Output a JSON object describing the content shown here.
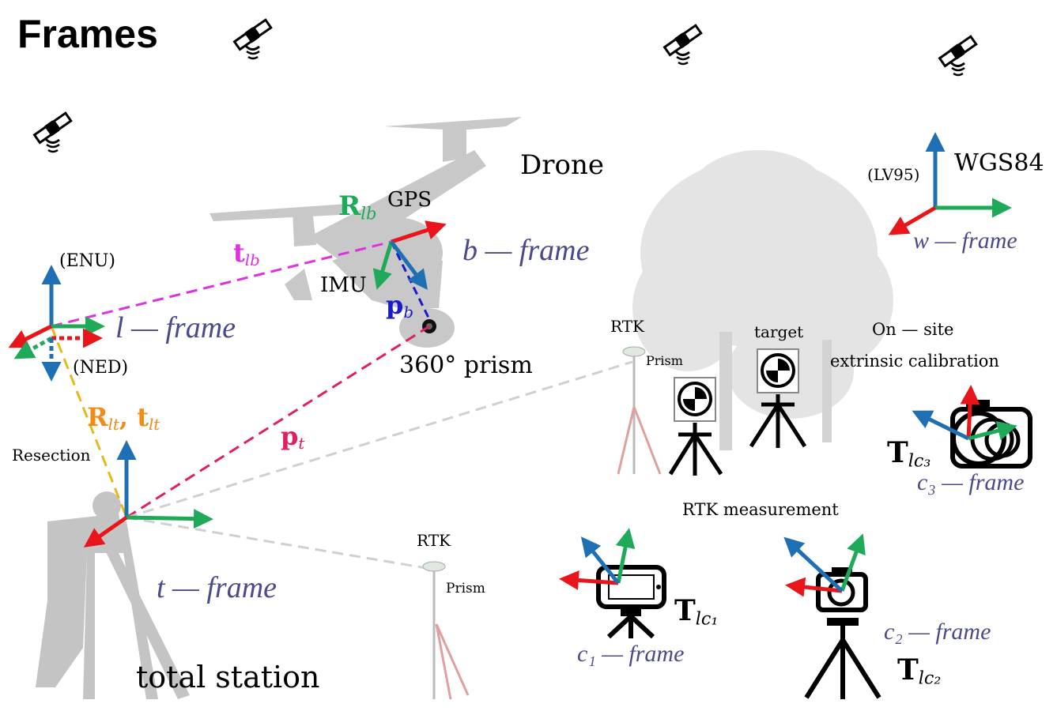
{
  "title": "Frames",
  "colors": {
    "axis_red": "#e8161a",
    "axis_green": "#1faa5a",
    "axis_blue": "#1f6fb5",
    "magenta": "#e030e0",
    "crimson": "#e0205c",
    "orange": "#f08c1a",
    "gold": "#e8b81a",
    "gray_dash": "#cfcfcf",
    "frame_text": "#4a4a8c",
    "dark_blue": "#1a1acc"
  },
  "drone": {
    "name": "Drone",
    "gps": "GPS",
    "imu": "IMU",
    "prism": "360° prism",
    "R_lb": {
      "main": "R",
      "sub": "lb"
    },
    "t_lb": {
      "main": "t",
      "sub": "lb"
    },
    "p_b": {
      "main": "p",
      "sub": "b"
    },
    "frame_label": "b — frame"
  },
  "local_frame": {
    "enu": "(ENU)",
    "ned": "(NED)",
    "frame_label": "l — frame",
    "R_lt": {
      "main": "R",
      "sub": "lt"
    },
    "t_lt": {
      "main": "t",
      "sub": "lt"
    },
    "separator": ",",
    "resection": "Resection"
  },
  "total_station": {
    "name": "total station",
    "frame_label": "t — frame",
    "p_t": {
      "main": "p",
      "sub": "t"
    }
  },
  "world": {
    "lv95": "(LV95)",
    "wgs84": "WGS84",
    "frame_label": "w — frame"
  },
  "rtk": {
    "rtk_top": "RTK",
    "prism_top": "Prism",
    "rtk_bottom": "RTK",
    "prism_bottom": "Prism",
    "target": "target",
    "measurement": "RTK measurement"
  },
  "calibration": {
    "line1": "On — site",
    "line2": "extrinsic calibration"
  },
  "cameras": {
    "c1": {
      "frame": "c₁ — frame",
      "T_main": "T",
      "T_sub": "lc₁"
    },
    "c2": {
      "frame": "c₂ — frame",
      "T_main": "T",
      "T_sub": "lc₂"
    },
    "c3": {
      "frame": "c₃ — frame",
      "T_main": "T",
      "T_sub": "lc₃"
    }
  },
  "icons": [
    "satellite-icon",
    "drone-silhouette",
    "tree-silhouette",
    "surveyor-silhouette",
    "rtk-pole-icon",
    "target-tripod-icon",
    "smartphone-tripod-icon",
    "camera-tripod-icon",
    "camera-icon"
  ]
}
